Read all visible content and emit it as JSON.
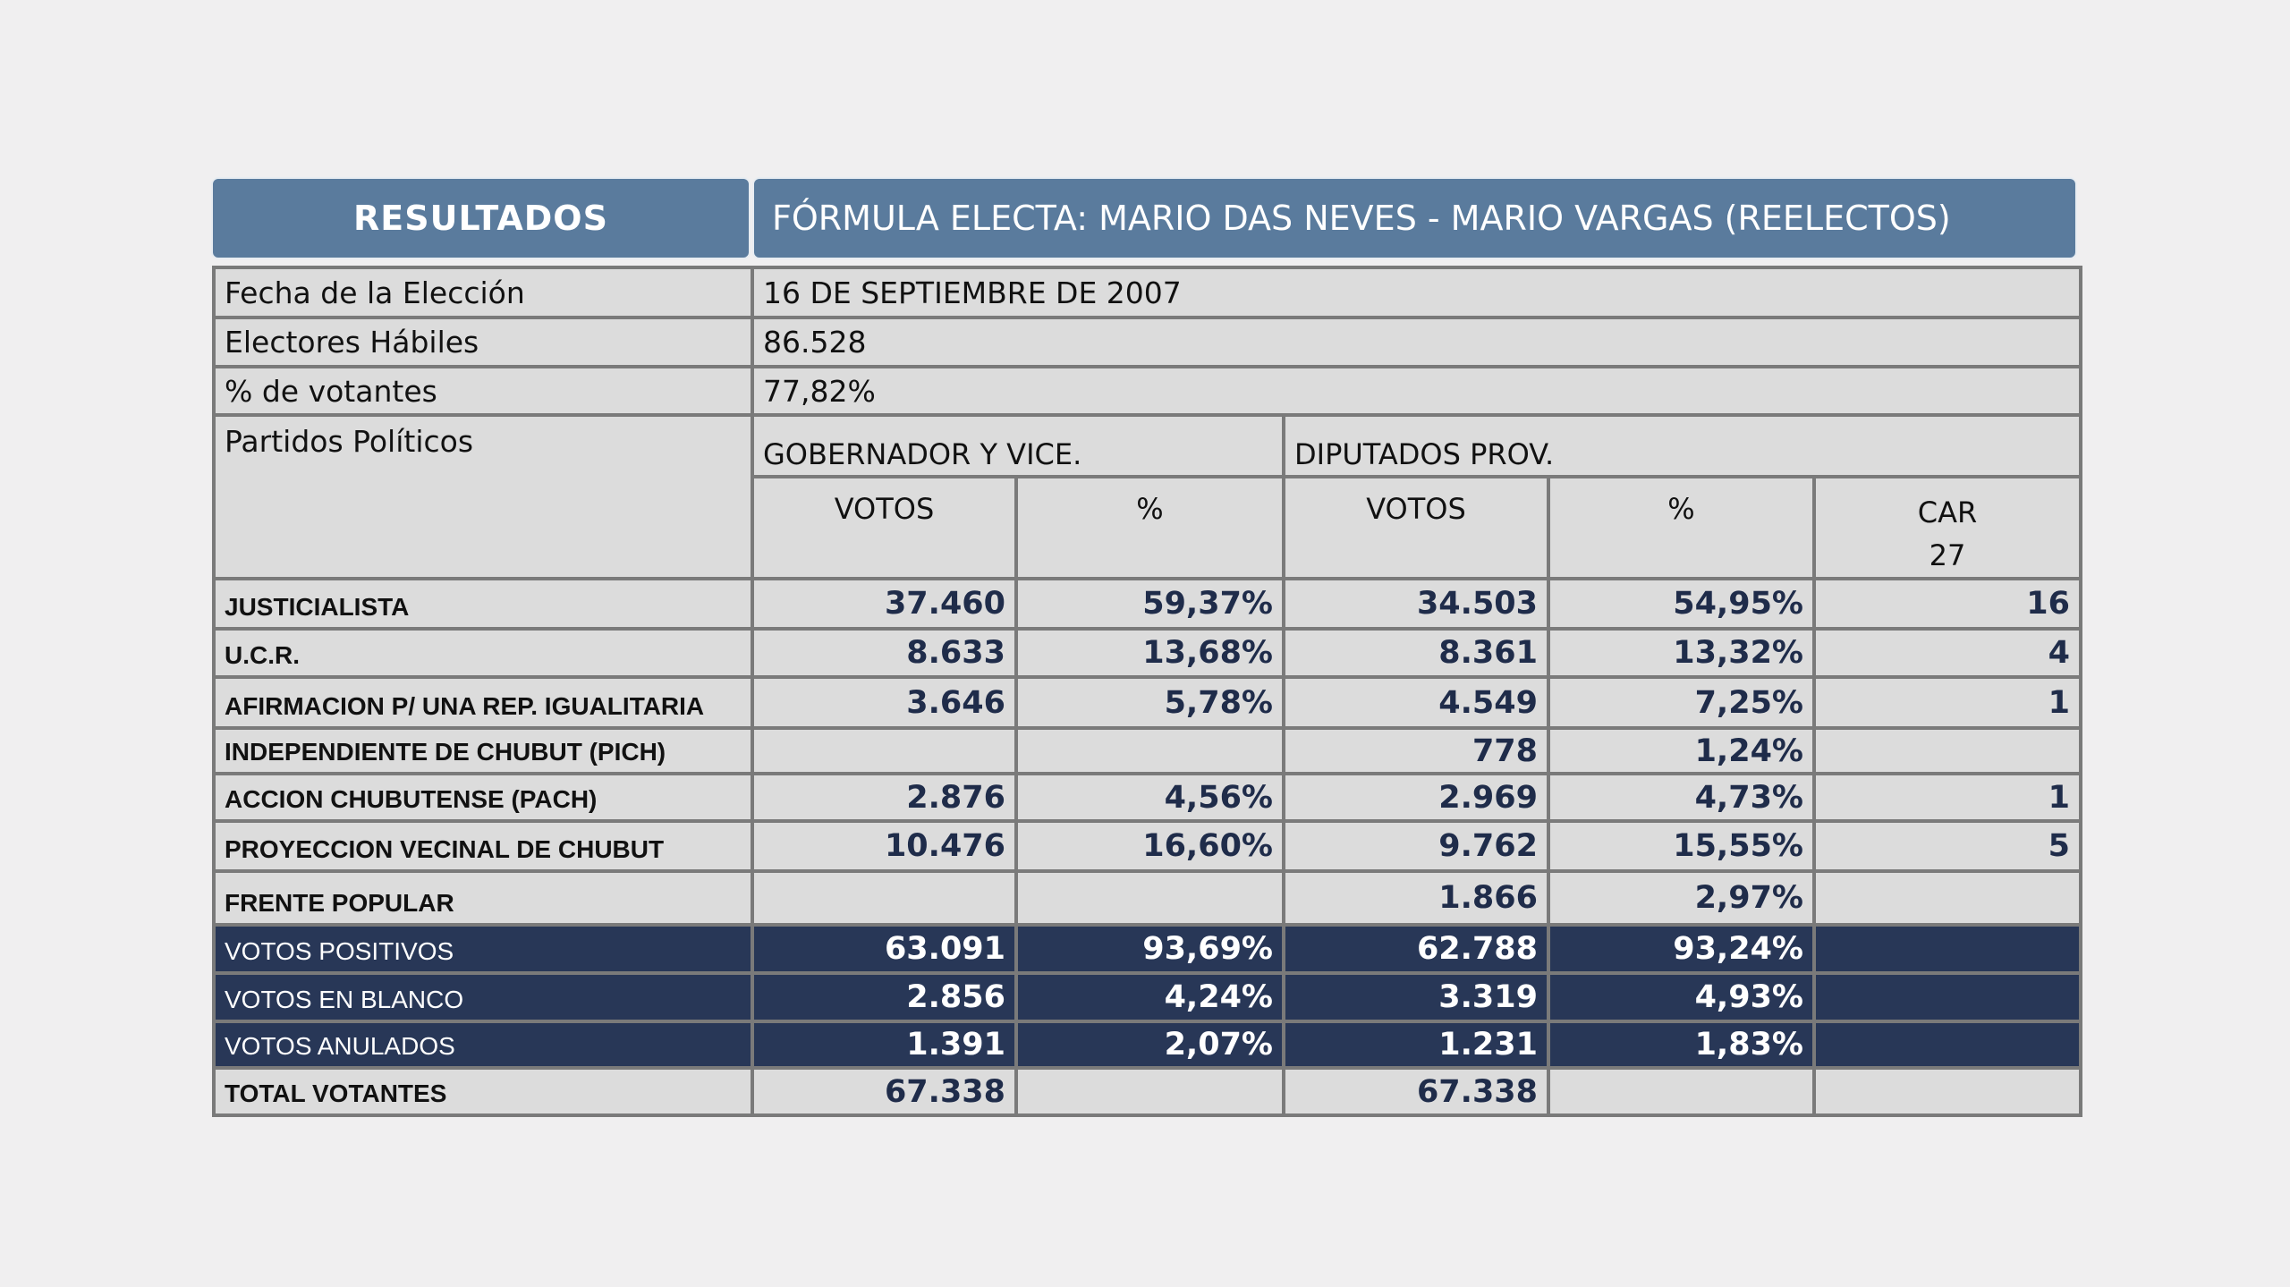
{
  "header": {
    "left": "RESULTADOS",
    "right": "FÓRMULA ELECTA: MARIO DAS NEVES - MARIO VARGAS (REELECTOS)"
  },
  "info": [
    {
      "label": "Fecha de la Elección",
      "value": "16 DE SEPTIEMBRE DE 2007"
    },
    {
      "label": "Electores Hábiles",
      "value": "86.528"
    },
    {
      "label": "% de votantes",
      "value": "77,82%"
    }
  ],
  "columns": {
    "parties_label": "Partidos Políticos",
    "group1": "GOBERNADOR Y VICE.",
    "group2": "DIPUTADOS PROV.",
    "votos1": "VOTOS",
    "pct1": "%",
    "votos2": "VOTOS",
    "pct2": "%",
    "car": "CAR",
    "car_total": "27"
  },
  "rows": [
    {
      "name": "JUSTICIALISTA",
      "gv": "37.460",
      "gp": "59,37%",
      "dv": "34.503",
      "dp": "54,95%",
      "car": "16",
      "dark": false
    },
    {
      "name": "U.C.R.",
      "gv": "8.633",
      "gp": "13,68%",
      "dv": "8.361",
      "dp": "13,32%",
      "car": "4",
      "dark": false
    },
    {
      "name": "AFIRMACION P/ UNA REP. IGUALITARIA",
      "gv": "3.646",
      "gp": "5,78%",
      "dv": "4.549",
      "dp": "7,25%",
      "car": "1",
      "dark": false
    },
    {
      "name": "INDEPENDIENTE DE CHUBUT (PICH)",
      "gv": "",
      "gp": "",
      "dv": "778",
      "dp": "1,24%",
      "car": "",
      "dark": false
    },
    {
      "name": "ACCION CHUBUTENSE (PACH)",
      "gv": "2.876",
      "gp": "4,56%",
      "dv": "2.969",
      "dp": "4,73%",
      "car": "1",
      "dark": false
    },
    {
      "name": "PROYECCION VECINAL DE CHUBUT",
      "gv": "10.476",
      "gp": "16,60%",
      "dv": "9.762",
      "dp": "15,55%",
      "car": "5",
      "dark": false
    },
    {
      "name": "FRENTE POPULAR",
      "gv": "",
      "gp": "",
      "dv": "1.866",
      "dp": "2,97%",
      "car": "",
      "dark": false
    },
    {
      "name": "VOTOS POSITIVOS",
      "gv": "63.091",
      "gp": "93,69%",
      "dv": "62.788",
      "dp": "93,24%",
      "car": "",
      "dark": true
    },
    {
      "name": "VOTOS EN BLANCO",
      "gv": "2.856",
      "gp": "4,24%",
      "dv": "3.319",
      "dp": "4,93%",
      "car": "",
      "dark": true
    },
    {
      "name": "VOTOS ANULADOS",
      "gv": "1.391",
      "gp": "2,07%",
      "dv": "1.231",
      "dp": "1,83%",
      "car": "",
      "dark": true
    },
    {
      "name": "TOTAL VOTANTES",
      "gv": "67.338",
      "gp": "",
      "dv": "67.338",
      "dp": "",
      "car": "",
      "dark": false
    }
  ],
  "colors": {
    "header": "#5a7b9d",
    "dark_row": "#283757",
    "cell": "#dcdcdc",
    "number": "#1f2c4a",
    "border": "#7a7a7a"
  }
}
